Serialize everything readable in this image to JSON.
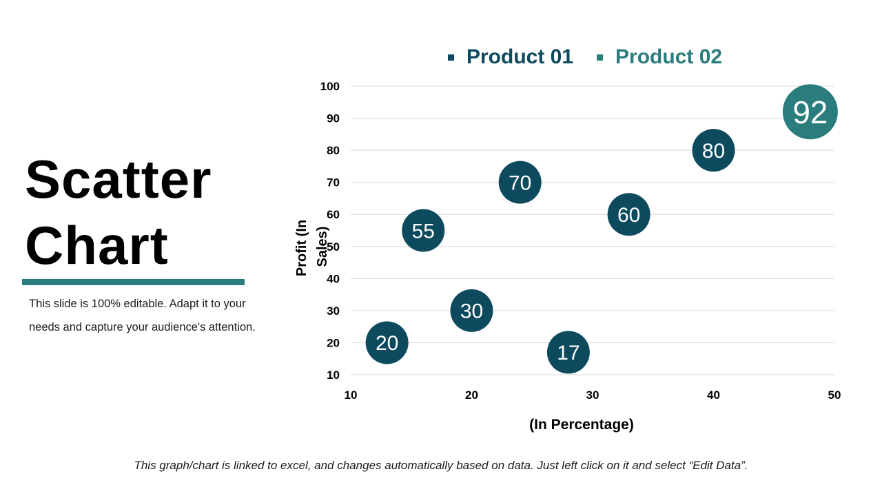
{
  "slide": {
    "title_line1": "Scatter",
    "title_line2": "Chart",
    "description": "This slide is 100% editable. Adapt it to your needs and capture your audience's attention.",
    "footnote": "This graph/chart is linked to excel, and changes automatically based on data. Just left click on it and select “Edit Data”.",
    "accent_color": "#2a7d7c"
  },
  "chart_data": {
    "type": "scatter",
    "title": "",
    "xlabel": "(In Percentage)",
    "ylabel": "Profit (In Sales)",
    "xlim": [
      10,
      50
    ],
    "ylim": [
      10,
      100
    ],
    "x_ticks": [
      10,
      20,
      30,
      40,
      50
    ],
    "y_ticks": [
      10,
      20,
      30,
      40,
      50,
      60,
      70,
      80,
      90,
      100
    ],
    "grid": true,
    "legend_position": "top",
    "series": [
      {
        "name": "Product 01",
        "color": "#0d4a5e",
        "points": [
          {
            "x": 13,
            "y": 20,
            "label": "20"
          },
          {
            "x": 16,
            "y": 55,
            "label": "55"
          },
          {
            "x": 20,
            "y": 30,
            "label": "30"
          },
          {
            "x": 24,
            "y": 70,
            "label": "70"
          },
          {
            "x": 28,
            "y": 17,
            "label": "17"
          },
          {
            "x": 33,
            "y": 60,
            "label": "60"
          },
          {
            "x": 40,
            "y": 80,
            "label": "80"
          }
        ]
      },
      {
        "name": "Product 02",
        "color": "#2a7d7c",
        "points": [
          {
            "x": 48,
            "y": 92,
            "label": "92"
          }
        ]
      }
    ]
  }
}
